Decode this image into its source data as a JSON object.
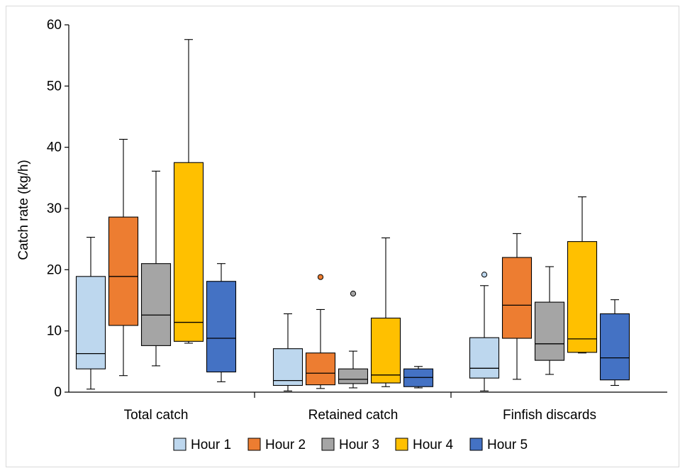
{
  "chart_data": {
    "type": "box",
    "ylabel": "Catch rate (kg/h)",
    "ylim": [
      0,
      60
    ],
    "yticks": [
      "0",
      "10",
      "20",
      "30",
      "40",
      "50",
      "60"
    ],
    "categories": [
      "Total catch",
      "Retained catch",
      "Finfish discards"
    ],
    "legend_position": "bottom",
    "series": [
      {
        "name": "Hour 1",
        "color": "#bdd7ee",
        "boxes": [
          {
            "min": 0.5,
            "q1": 3.8,
            "median": 6.3,
            "q3": 18.9,
            "max": 25.3,
            "outliers": []
          },
          {
            "min": 0.2,
            "q1": 1.1,
            "median": 1.9,
            "q3": 7.1,
            "max": 12.8,
            "outliers": []
          },
          {
            "min": 0.2,
            "q1": 2.3,
            "median": 3.9,
            "q3": 8.9,
            "max": 17.4,
            "outliers": [
              19.2
            ]
          }
        ]
      },
      {
        "name": "Hour 2",
        "color": "#ed7d31",
        "boxes": [
          {
            "min": 2.7,
            "q1": 10.9,
            "median": 18.9,
            "q3": 28.6,
            "max": 41.3,
            "outliers": []
          },
          {
            "min": 0.6,
            "q1": 1.2,
            "median": 3.1,
            "q3": 6.4,
            "max": 13.5,
            "outliers": [
              18.8
            ]
          },
          {
            "min": 2.1,
            "q1": 8.8,
            "median": 14.2,
            "q3": 22.0,
            "max": 25.9,
            "outliers": []
          }
        ]
      },
      {
        "name": "Hour 3",
        "color": "#a5a5a5",
        "boxes": [
          {
            "min": 4.3,
            "q1": 7.6,
            "median": 12.6,
            "q3": 21.0,
            "max": 36.1,
            "outliers": []
          },
          {
            "min": 0.7,
            "q1": 1.4,
            "median": 2.1,
            "q3": 3.8,
            "max": 6.7,
            "outliers": [
              16.1
            ]
          },
          {
            "min": 2.9,
            "q1": 5.2,
            "median": 7.9,
            "q3": 14.7,
            "max": 20.5,
            "outliers": []
          }
        ]
      },
      {
        "name": "Hour 4",
        "color": "#ffc000",
        "boxes": [
          {
            "min": 8.0,
            "q1": 8.3,
            "median": 11.4,
            "q3": 37.5,
            "max": 57.6,
            "outliers": []
          },
          {
            "min": 0.9,
            "q1": 1.5,
            "median": 2.8,
            "q3": 12.1,
            "max": 25.2,
            "outliers": []
          },
          {
            "min": 6.4,
            "q1": 6.5,
            "median": 8.7,
            "q3": 24.6,
            "max": 31.9,
            "outliers": []
          }
        ]
      },
      {
        "name": "Hour 5",
        "color": "#4472c4",
        "boxes": [
          {
            "min": 1.7,
            "q1": 3.3,
            "median": 8.8,
            "q3": 18.1,
            "max": 21.0,
            "outliers": []
          },
          {
            "min": 0.7,
            "q1": 0.9,
            "median": 2.4,
            "q3": 3.8,
            "max": 4.2,
            "outliers": []
          },
          {
            "min": 1.1,
            "q1": 2.0,
            "median": 5.6,
            "q3": 12.8,
            "max": 15.1,
            "outliers": []
          }
        ]
      }
    ]
  }
}
